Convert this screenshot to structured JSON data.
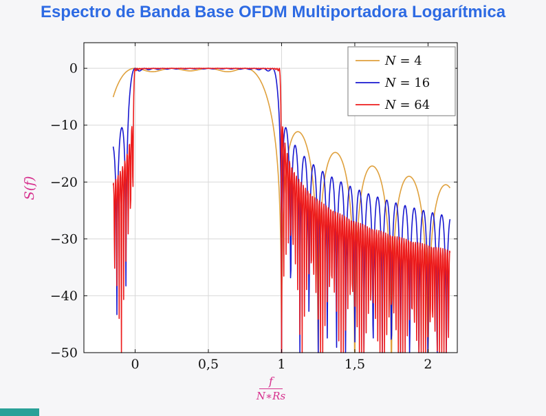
{
  "page": {
    "title": "Espectro de Banda Base OFDM Multiportadora Logarítmica",
    "title_color": "#2d6ae3",
    "background": "#f6f6f8",
    "artifact_color": "#2aa198"
  },
  "chart_data": {
    "type": "line",
    "title": "Espectro de Banda Base OFDM Multiportadora Logarítmica",
    "ylabel": "S(f)",
    "xlabel": {
      "numerator": "f",
      "denominator": "N∗Rs"
    },
    "axis_label_color": "#d62f8d",
    "xlim": [
      -0.35,
      2.2
    ],
    "ylim": [
      -50,
      4.5
    ],
    "x_ticks": [
      {
        "value": 0,
        "label": "0"
      },
      {
        "value": 0.5,
        "label": "0,5"
      },
      {
        "value": 1,
        "label": "1"
      },
      {
        "value": 1.5,
        "label": "1,5"
      },
      {
        "value": 2,
        "label": "2"
      }
    ],
    "y_ticks": [
      {
        "value": 0,
        "label": "0"
      },
      {
        "value": -10,
        "label": "−10"
      },
      {
        "value": -20,
        "label": "−20"
      },
      {
        "value": -30,
        "label": "−30"
      },
      {
        "value": -40,
        "label": "−40"
      },
      {
        "value": -50,
        "label": "−50"
      }
    ],
    "grid": true,
    "grid_color": "#d8d8d8",
    "frame_color": "#000000",
    "tick_label_color": "#111111",
    "plot_background": "#ffffff",
    "legend": {
      "position": "top-right",
      "background": "#ffffff",
      "border_color": "#777777",
      "entries": [
        "N = 4",
        "N = 16",
        "N = 64"
      ]
    },
    "model": "S_dB(f) = 10*log10( sum_{k=0}^{N-1} sinc^2(N*f - k) ), clipped at -50 dB",
    "series": [
      {
        "name": "N = 4",
        "var": "N",
        "eq_value": "4",
        "N": 4,
        "color": "#dfa03c",
        "f_range": [
          -0.15,
          2.15
        ],
        "samples": 900
      },
      {
        "name": "N = 16",
        "var": "N",
        "eq_value": "16",
        "N": 16,
        "color": "#1717cf",
        "f_range": [
          -0.15,
          2.15
        ],
        "samples": 900
      },
      {
        "name": "N = 64",
        "var": "N",
        "eq_value": "64",
        "N": 64,
        "color": "#ed1b1b",
        "f_range": [
          -0.15,
          2.15
        ],
        "samples": 900
      }
    ]
  }
}
